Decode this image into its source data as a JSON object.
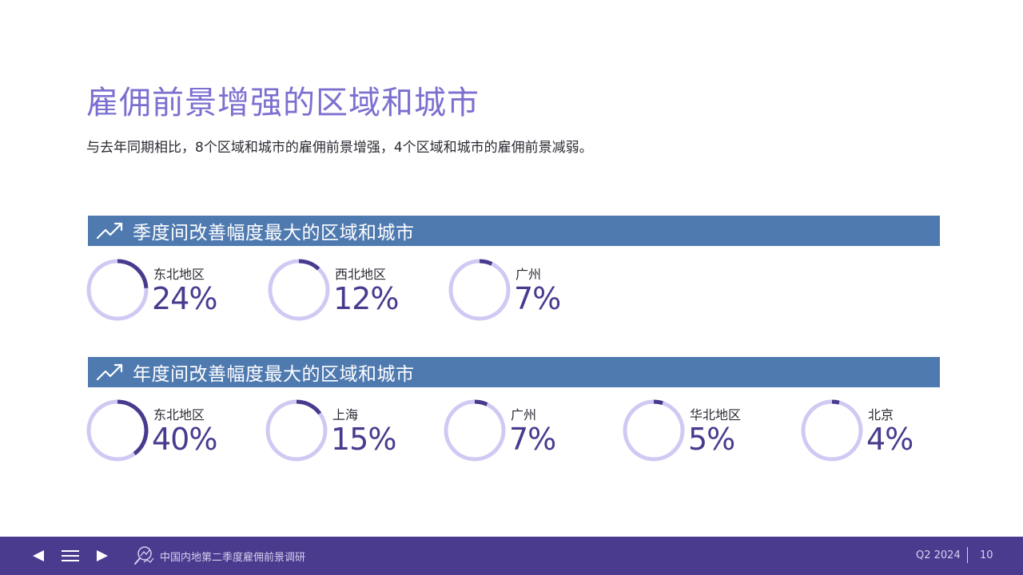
{
  "title": "雇佣前景增强的区域和城市",
  "subtitle": "与去年同期相比，8个区域和城市的雇佣前景增强，4个区域和城市的雇佣前景减弱。",
  "colors": {
    "ring_track": "#cfcaf3",
    "ring_fill": "#4a3a8e",
    "band": "#4f7ab0",
    "title": "#7b6fd0",
    "footer": "#4b3b8f"
  },
  "sections": [
    {
      "label": "季度间改善幅度最大的区域和城市",
      "icon": "trend-up-icon",
      "items": [
        {
          "region": "东北地区",
          "value_text": "24%",
          "value": 24
        },
        {
          "region": "西北地区",
          "value_text": "12%",
          "value": 12
        },
        {
          "region": "广州",
          "value_text": "7%",
          "value": 7
        }
      ]
    },
    {
      "label": "年度间改善幅度最大的区域和城市",
      "icon": "trend-up-icon",
      "items": [
        {
          "region": "东北地区",
          "value_text": "40%",
          "value": 40
        },
        {
          "region": "上海",
          "value_text": "15%",
          "value": 15
        },
        {
          "region": "广州",
          "value_text": "7%",
          "value": 7
        },
        {
          "region": "华北地区",
          "value_text": "5%",
          "value": 5
        },
        {
          "region": "北京",
          "value_text": "4%",
          "value": 4
        }
      ]
    }
  ],
  "footer": {
    "prev_icon": "triangle-left-icon",
    "menu_icon": "hamburger-menu-icon",
    "next_icon": "triangle-right-icon",
    "report_icon": "magnifier-chart-icon",
    "report_title": "中国内地第二季度雇佣前景调研",
    "quarter": "Q2 2024",
    "page_number": "10"
  }
}
